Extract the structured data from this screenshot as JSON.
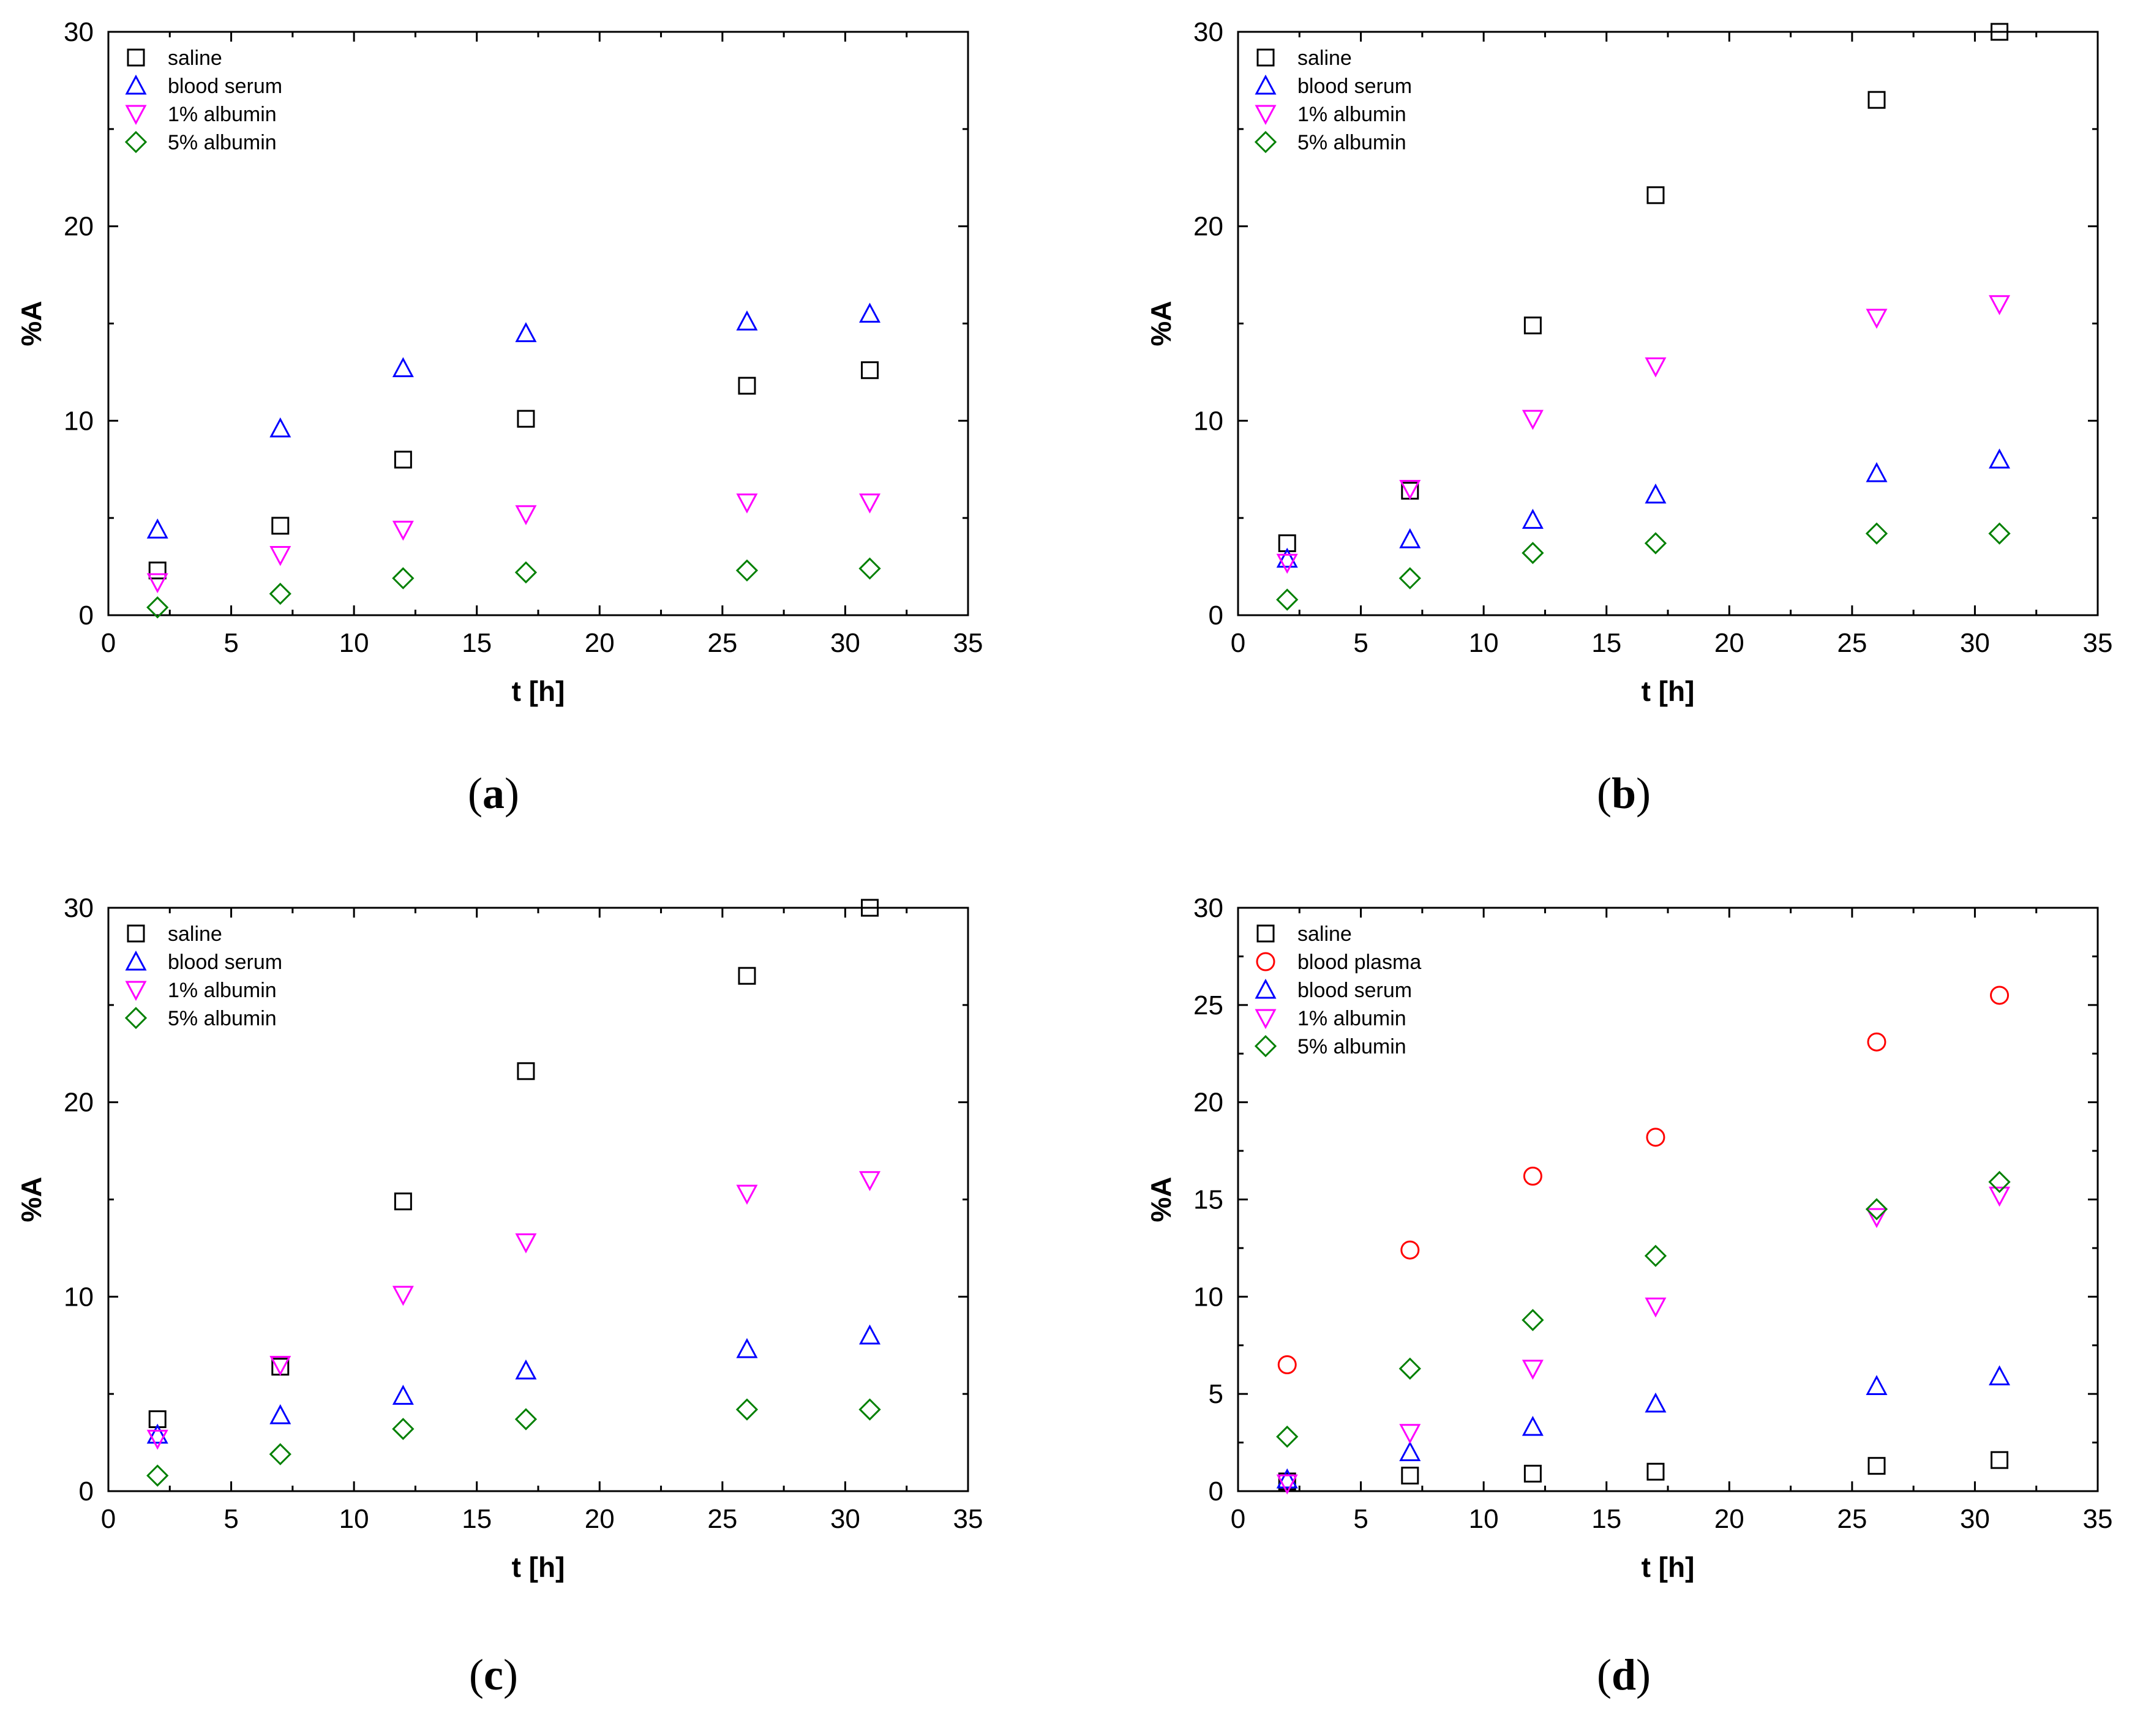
{
  "chart_data": [
    {
      "panel": "a",
      "caption": "(a)",
      "type": "scatter",
      "xlabel": "t [h]",
      "ylabel": "%A",
      "xlim": [
        0,
        35
      ],
      "ylim": [
        0,
        30
      ],
      "xticks": [
        0,
        5,
        10,
        15,
        20,
        25,
        30,
        35
      ],
      "yticks": [
        0,
        10,
        20,
        30
      ],
      "legend_position": "top-left",
      "x": [
        2,
        7,
        12,
        17,
        26,
        31
      ],
      "series": [
        {
          "name": "saline",
          "marker": "square",
          "color": "#000000",
          "values": [
            2.3,
            4.6,
            8.0,
            10.1,
            11.8,
            12.6
          ]
        },
        {
          "name": "blood serum",
          "marker": "triangle-up",
          "color": "#0000ff",
          "values": [
            4.4,
            9.6,
            12.7,
            14.5,
            15.1,
            15.5
          ]
        },
        {
          "name": "1% albumin",
          "marker": "triangle-down",
          "color": "#ff00ff",
          "values": [
            1.7,
            3.1,
            4.4,
            5.2,
            5.8,
            5.8
          ]
        },
        {
          "name": "5% albumin",
          "marker": "diamond",
          "color": "#008000",
          "values": [
            0.4,
            1.1,
            1.9,
            2.2,
            2.3,
            2.4
          ]
        }
      ]
    },
    {
      "panel": "b",
      "caption": "(b)",
      "type": "scatter",
      "xlabel": "t [h]",
      "ylabel": "%A",
      "xlim": [
        0,
        35
      ],
      "ylim": [
        0,
        30
      ],
      "xticks": [
        0,
        5,
        10,
        15,
        20,
        25,
        30,
        35
      ],
      "yticks": [
        0,
        10,
        20,
        30
      ],
      "legend_position": "top-left",
      "x": [
        2,
        7,
        12,
        17,
        26,
        31
      ],
      "series": [
        {
          "name": "saline",
          "marker": "square",
          "color": "#000000",
          "values": [
            3.7,
            6.4,
            14.9,
            21.6,
            26.5,
            30.0
          ]
        },
        {
          "name": "blood serum",
          "marker": "triangle-up",
          "color": "#0000ff",
          "values": [
            2.9,
            3.9,
            4.9,
            6.2,
            7.3,
            8.0
          ]
        },
        {
          "name": "1% albumin",
          "marker": "triangle-down",
          "color": "#ff00ff",
          "values": [
            2.7,
            6.5,
            10.1,
            12.8,
            15.3,
            16.0
          ]
        },
        {
          "name": "5% albumin",
          "marker": "diamond",
          "color": "#008000",
          "values": [
            0.8,
            1.9,
            3.2,
            3.7,
            4.2,
            4.2
          ]
        }
      ]
    },
    {
      "panel": "c",
      "caption": "(c)",
      "type": "scatter",
      "xlabel": "t [h]",
      "ylabel": "%A",
      "xlim": [
        0,
        35
      ],
      "ylim": [
        0,
        30
      ],
      "xticks": [
        0,
        5,
        10,
        15,
        20,
        25,
        30,
        35
      ],
      "yticks": [
        0,
        10,
        20,
        30
      ],
      "legend_position": "top-left",
      "x": [
        2,
        7,
        12,
        17,
        26,
        31
      ],
      "series": [
        {
          "name": "saline",
          "marker": "square",
          "color": "#000000",
          "values": [
            3.7,
            6.4,
            14.9,
            21.6,
            26.5,
            30.0
          ]
        },
        {
          "name": "blood serum",
          "marker": "triangle-up",
          "color": "#0000ff",
          "values": [
            2.9,
            3.9,
            4.9,
            6.2,
            7.3,
            8.0
          ]
        },
        {
          "name": "1% albumin",
          "marker": "triangle-down",
          "color": "#ff00ff",
          "values": [
            2.7,
            6.5,
            10.1,
            12.8,
            15.3,
            16.0
          ]
        },
        {
          "name": "5% albumin",
          "marker": "diamond",
          "color": "#008000",
          "values": [
            0.8,
            1.9,
            3.2,
            3.7,
            4.2,
            4.2
          ]
        }
      ]
    },
    {
      "panel": "d",
      "caption": "(d)",
      "type": "scatter",
      "xlabel": "t [h]",
      "ylabel": "%A",
      "xlim": [
        0,
        35
      ],
      "ylim": [
        0,
        30
      ],
      "xticks": [
        0,
        5,
        10,
        15,
        20,
        25,
        30,
        35
      ],
      "yticks": [
        0,
        5,
        10,
        15,
        20,
        25,
        30
      ],
      "legend_position": "top-left",
      "x": [
        2,
        7,
        12,
        17,
        26,
        31
      ],
      "series": [
        {
          "name": "saline",
          "marker": "square",
          "color": "#000000",
          "values": [
            0.5,
            0.8,
            0.9,
            1.0,
            1.3,
            1.6
          ]
        },
        {
          "name": "blood plasma",
          "marker": "circle",
          "color": "#ff0000",
          "values": [
            6.5,
            12.4,
            16.2,
            18.2,
            23.1,
            25.5
          ]
        },
        {
          "name": "blood serum",
          "marker": "triangle-up",
          "color": "#0000ff",
          "values": [
            0.6,
            2.0,
            3.3,
            4.5,
            5.4,
            5.9
          ]
        },
        {
          "name": "1% albumin",
          "marker": "triangle-down",
          "color": "#ff00ff",
          "values": [
            0.4,
            3.0,
            6.3,
            9.5,
            14.1,
            15.2
          ]
        },
        {
          "name": "5% albumin",
          "marker": "diamond",
          "color": "#008000",
          "values": [
            2.8,
            6.3,
            8.8,
            12.1,
            14.5,
            15.9
          ]
        }
      ]
    }
  ]
}
